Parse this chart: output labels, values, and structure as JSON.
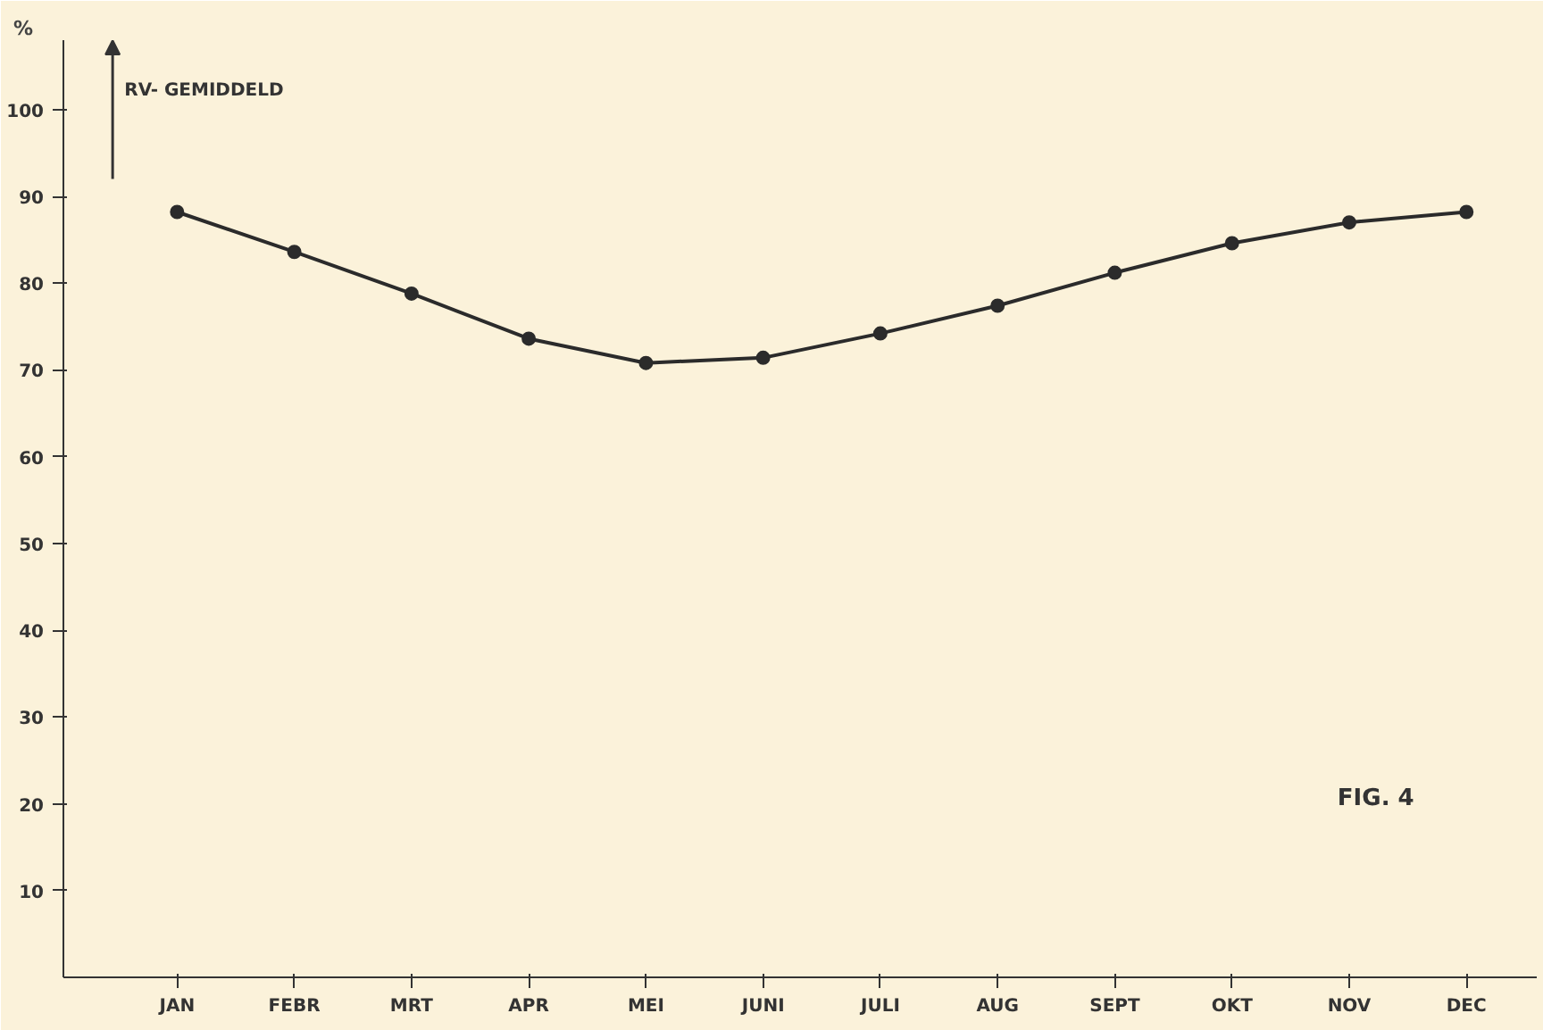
{
  "chart_data": {
    "type": "line",
    "ylabel": "%",
    "categories": [
      "JAN",
      "FEBR",
      "MRT",
      "APR",
      "MEI",
      "JUNI",
      "JULI",
      "AUG",
      "SEPT",
      "OKT",
      "NOV",
      "DEC"
    ],
    "series": [
      {
        "color": "#2b2b2b",
        "values": [
          88.2,
          83.6,
          78.8,
          73.6,
          70.8,
          71.4,
          74.2,
          77.4,
          81.2,
          84.6,
          87,
          88.2
        ]
      }
    ],
    "ylim": [
      0,
      108
    ],
    "yticks": [
      10,
      20,
      30,
      40,
      50,
      60,
      70,
      80,
      90,
      100
    ],
    "marker": "circle",
    "line_style": "solid",
    "grid": false,
    "annotations": [
      "RV- GEMIDDELD",
      "FIG. 4"
    ]
  }
}
